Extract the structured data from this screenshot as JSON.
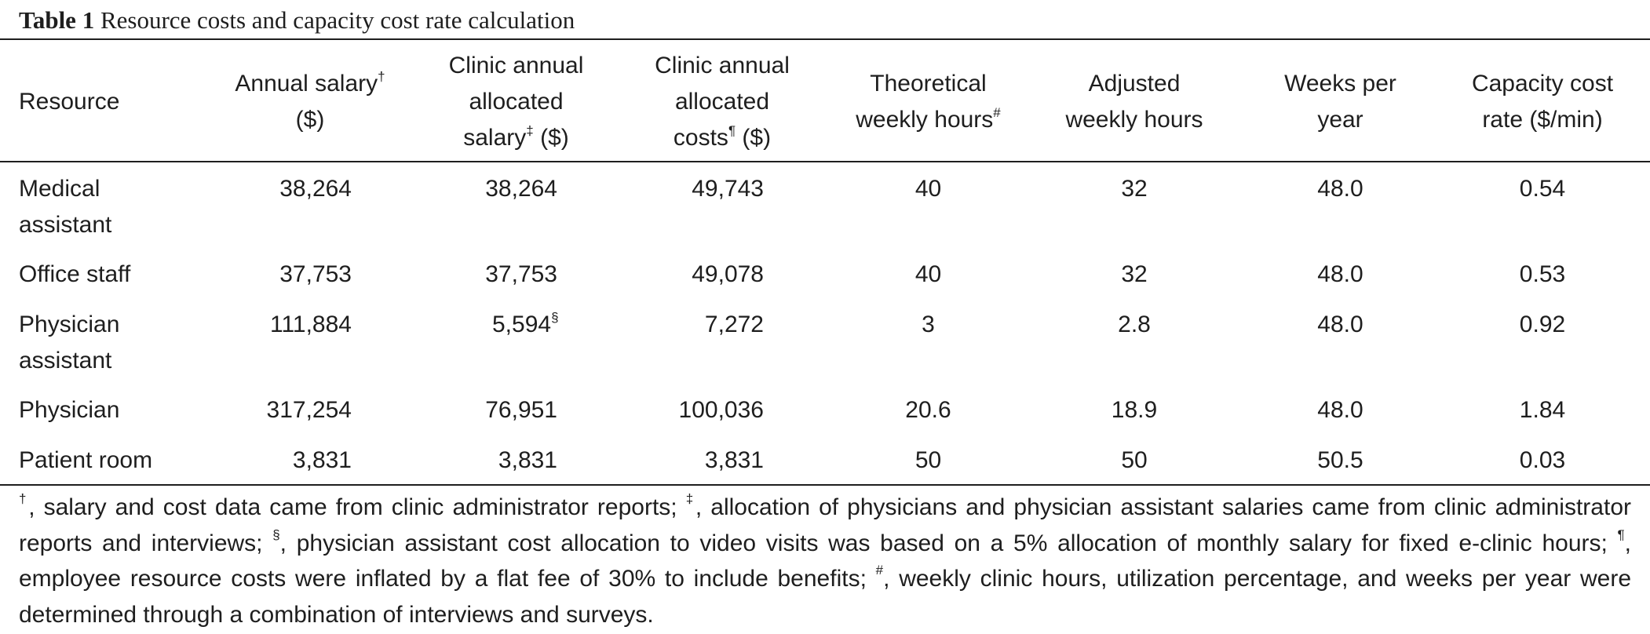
{
  "title": {
    "label": "Table 1",
    "text": "Resource costs and capacity cost rate calculation"
  },
  "headers": {
    "resource": "Resource",
    "annual_salary_1": "Annual salary",
    "annual_salary_mark": "†",
    "annual_salary_2": "($)",
    "allocated_salary_1": "Clinic annual",
    "allocated_salary_2": "allocated",
    "allocated_salary_3": "salary",
    "allocated_salary_mark": "‡",
    "allocated_salary_unit": " ($)",
    "allocated_costs_1": "Clinic annual",
    "allocated_costs_2": "allocated",
    "allocated_costs_3": "costs",
    "allocated_costs_mark": "¶",
    "allocated_costs_unit": " ($)",
    "theoretical_1": "Theoretical",
    "theoretical_2": "weekly hours",
    "theoretical_mark": "#",
    "adjusted_1": "Adjusted",
    "adjusted_2": "weekly hours",
    "weeks_1": "Weeks per",
    "weeks_2": "year",
    "ccr_1": "Capacity cost",
    "ccr_2": "rate ($/min)"
  },
  "rows": [
    {
      "resource_1": "Medical",
      "resource_2": "assistant",
      "salary": "38,264",
      "allocated_salary": "38,264",
      "allocated_salary_mark": "",
      "allocated_costs": "49,743",
      "theoretical": "40",
      "adjusted": "32",
      "weeks": "48.0",
      "ccr": "0.54"
    },
    {
      "resource_1": "Office staff",
      "resource_2": "",
      "salary": "37,753",
      "allocated_salary": "37,753",
      "allocated_salary_mark": "",
      "allocated_costs": "49,078",
      "theoretical": "40",
      "adjusted": "32",
      "weeks": "48.0",
      "ccr": "0.53"
    },
    {
      "resource_1": "Physician",
      "resource_2": "assistant",
      "salary": "111,884",
      "allocated_salary": "5,594",
      "allocated_salary_mark": "§",
      "allocated_costs": "7,272",
      "theoretical": "3",
      "adjusted": "2.8",
      "weeks": "48.0",
      "ccr": "0.92"
    },
    {
      "resource_1": "Physician",
      "resource_2": "",
      "salary": "317,254",
      "allocated_salary": "76,951",
      "allocated_salary_mark": "",
      "allocated_costs": "100,036",
      "theoretical": "20.6",
      "adjusted": "18.9",
      "weeks": "48.0",
      "ccr": "1.84"
    },
    {
      "resource_1": "Patient room",
      "resource_2": "",
      "salary": "3,831",
      "allocated_salary": "3,831",
      "allocated_salary_mark": "",
      "allocated_costs": "3,831",
      "theoretical": "50",
      "adjusted": "50",
      "weeks": "50.5",
      "ccr": "0.03"
    }
  ],
  "footnotes": {
    "m1": "†",
    "t1": ", salary and cost data came from clinic administrator reports; ",
    "m2": "‡",
    "t2": ", allocation of physicians and physician assistant salaries came from clinic administrator reports and interviews; ",
    "m3": "§",
    "t3": ", physician assistant cost allocation to video visits was based on a 5% allocation of monthly salary for fixed e-clinic hours; ",
    "m4": "¶",
    "t4": ", employee resource costs were inflated by a flat fee of 30% to include benefits; ",
    "m5": "#",
    "t5": ", weekly clinic hours, utilization percentage, and weeks per year were determined through a combination of interviews and surveys."
  }
}
